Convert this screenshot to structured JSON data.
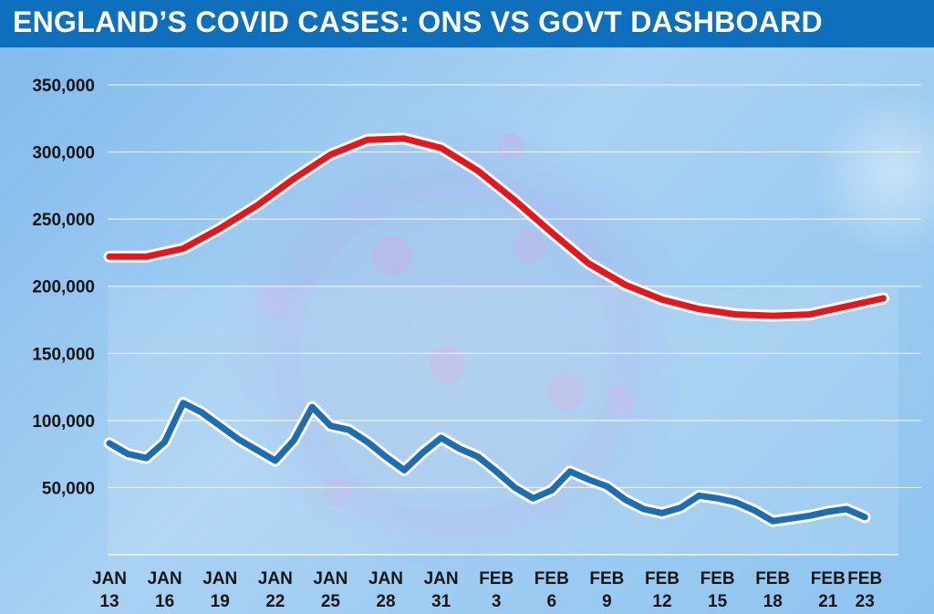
{
  "header": {
    "title": "ENGLAND’S COVID CASES: ONS VS GOVT DASHBOARD"
  },
  "chart_data": {
    "type": "line",
    "title": "ENGLAND’S COVID CASES: ONS VS GOVT DASHBOARD",
    "xlabel": "",
    "ylabel": "",
    "ylim": [
      0,
      350000
    ],
    "grid": true,
    "y_ticks": [
      {
        "value": 50000,
        "label": "50,000"
      },
      {
        "value": 100000,
        "label": "100,000"
      },
      {
        "value": 150000,
        "label": "150,000"
      },
      {
        "value": 200000,
        "label": "200,000"
      },
      {
        "value": 250000,
        "label": "250,000"
      },
      {
        "value": 300000,
        "label": "300,000"
      },
      {
        "value": 350000,
        "label": "350,000"
      }
    ],
    "x_ticks": [
      {
        "day": 0,
        "month": "JAN",
        "date": "13"
      },
      {
        "day": 3,
        "month": "JAN",
        "date": "16"
      },
      {
        "day": 6,
        "month": "JAN",
        "date": "19"
      },
      {
        "day": 9,
        "month": "JAN",
        "date": "22"
      },
      {
        "day": 12,
        "month": "JAN",
        "date": "25"
      },
      {
        "day": 15,
        "month": "JAN",
        "date": "28"
      },
      {
        "day": 18,
        "month": "JAN",
        "date": "31"
      },
      {
        "day": 21,
        "month": "FEB",
        "date": "3"
      },
      {
        "day": 24,
        "month": "FEB",
        "date": "6"
      },
      {
        "day": 27,
        "month": "FEB",
        "date": "9"
      },
      {
        "day": 30,
        "month": "FEB",
        "date": "12"
      },
      {
        "day": 33,
        "month": "FEB",
        "date": "15"
      },
      {
        "day": 36,
        "month": "FEB",
        "date": "18"
      },
      {
        "day": 39,
        "month": "FEB",
        "date": "21"
      },
      {
        "day": 41,
        "month": "FEB",
        "date": "23"
      }
    ],
    "series": [
      {
        "color": "#e8161b",
        "points": [
          [
            0,
            222000
          ],
          [
            2,
            222000
          ],
          [
            4,
            228000
          ],
          [
            6,
            243000
          ],
          [
            8,
            260000
          ],
          [
            10,
            280000
          ],
          [
            12,
            298000
          ],
          [
            14,
            309000
          ],
          [
            16,
            310000
          ],
          [
            18,
            303000
          ],
          [
            20,
            286000
          ],
          [
            22,
            264000
          ],
          [
            24,
            240000
          ],
          [
            26,
            217000
          ],
          [
            28,
            201000
          ],
          [
            30,
            190000
          ],
          [
            32,
            183000
          ],
          [
            34,
            179000
          ],
          [
            36,
            178000
          ],
          [
            38,
            179000
          ],
          [
            40,
            185000
          ],
          [
            42,
            191000
          ]
        ]
      },
      {
        "color": "#1d6db2",
        "points": [
          [
            0,
            83000
          ],
          [
            1,
            75000
          ],
          [
            2,
            72000
          ],
          [
            3,
            84000
          ],
          [
            4,
            113000
          ],
          [
            5,
            106000
          ],
          [
            6,
            96000
          ],
          [
            7,
            86000
          ],
          [
            8,
            78000
          ],
          [
            9,
            70000
          ],
          [
            10,
            85000
          ],
          [
            11,
            110000
          ],
          [
            12,
            96000
          ],
          [
            13,
            93000
          ],
          [
            14,
            84000
          ],
          [
            15,
            73000
          ],
          [
            16,
            63000
          ],
          [
            17,
            76000
          ],
          [
            18,
            87000
          ],
          [
            19,
            79000
          ],
          [
            20,
            73000
          ],
          [
            21,
            62000
          ],
          [
            22,
            50000
          ],
          [
            23,
            42000
          ],
          [
            24,
            48000
          ],
          [
            25,
            62000
          ],
          [
            26,
            56000
          ],
          [
            27,
            51000
          ],
          [
            28,
            41000
          ],
          [
            29,
            34000
          ],
          [
            30,
            31000
          ],
          [
            31,
            35000
          ],
          [
            32,
            44000
          ],
          [
            33,
            42000
          ],
          [
            34,
            39000
          ],
          [
            35,
            33000
          ],
          [
            36,
            25000
          ],
          [
            37,
            27000
          ],
          [
            38,
            29000
          ],
          [
            39,
            32000
          ],
          [
            40,
            34000
          ],
          [
            41,
            28000
          ]
        ]
      }
    ]
  }
}
